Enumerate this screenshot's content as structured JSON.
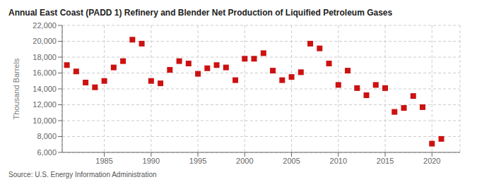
{
  "chart_data": {
    "type": "scatter",
    "title": "Annual East Coast (PADD 1) Refinery and Blender Net Production of Liquified Petroleum Gases",
    "ylabel": "Thousand Barrels",
    "annotations": [
      "Source: U.S. Energy Information Administration"
    ],
    "x": [
      1981,
      1982,
      1983,
      1984,
      1985,
      1986,
      1987,
      1988,
      1989,
      1990,
      1991,
      1992,
      1993,
      1994,
      1995,
      1996,
      1997,
      1998,
      1999,
      2000,
      2001,
      2002,
      2003,
      2004,
      2005,
      2006,
      2007,
      2008,
      2009,
      2010,
      2011,
      2012,
      2013,
      2014,
      2015,
      2016,
      2017,
      2018,
      2019,
      2020,
      2021
    ],
    "values": [
      17000,
      16200,
      14800,
      14200,
      15000,
      16700,
      17500,
      20200,
      19700,
      15000,
      14700,
      16400,
      17500,
      17200,
      15900,
      16600,
      17000,
      16700,
      15100,
      17800,
      17800,
      18500,
      16300,
      15100,
      15500,
      16100,
      19700,
      19100,
      17200,
      14500,
      16300,
      14100,
      13200,
      14500,
      14100,
      11100,
      11600,
      13100,
      11700,
      7100,
      7700
    ],
    "color": "#cc1111",
    "marker": "square",
    "grid": true,
    "xlim": [
      1980.5,
      2023
    ],
    "xticks": [
      1985,
      1990,
      1995,
      2000,
      2005,
      2010,
      2015,
      2020
    ],
    "ylim": [
      6000,
      22000
    ],
    "yticks": [
      {
        "value": 6000,
        "label": "6,000"
      },
      {
        "value": 8000,
        "label": "8,000"
      },
      {
        "value": 10000,
        "label": "10,000"
      },
      {
        "value": 12000,
        "label": "12,000"
      },
      {
        "value": 14000,
        "label": "14,000"
      },
      {
        "value": 16000,
        "label": "16,000"
      },
      {
        "value": 18000,
        "label": "18,000"
      },
      {
        "value": 20000,
        "label": "20,000"
      },
      {
        "value": 22000,
        "label": "22,000"
      }
    ]
  }
}
